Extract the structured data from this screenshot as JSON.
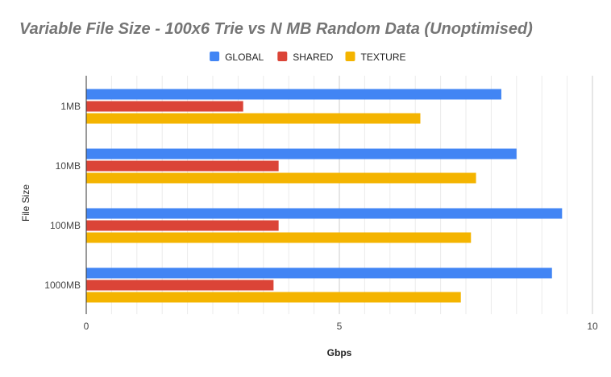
{
  "chart_data": {
    "type": "bar",
    "orientation": "horizontal",
    "title": "Variable File Size - 100x6 Trie vs N MB Random Data (Unoptimised)",
    "xlabel": "Gbps",
    "ylabel": "File Size",
    "categories": [
      "1MB",
      "10MB",
      "100MB",
      "1000MB"
    ],
    "series": [
      {
        "name": "GLOBAL",
        "color": "#4285f4",
        "values": [
          8.2,
          8.5,
          9.4,
          9.2
        ]
      },
      {
        "name": "SHARED",
        "color": "#db4437",
        "values": [
          3.1,
          3.8,
          3.8,
          3.7
        ]
      },
      {
        "name": "TEXTURE",
        "color": "#f4b400",
        "values": [
          6.6,
          7.7,
          7.6,
          7.4
        ]
      }
    ],
    "xlim": [
      0,
      10
    ],
    "x_ticks": [
      "0",
      "5",
      "10"
    ],
    "minor_gridlines": true,
    "legend_position": "top"
  }
}
